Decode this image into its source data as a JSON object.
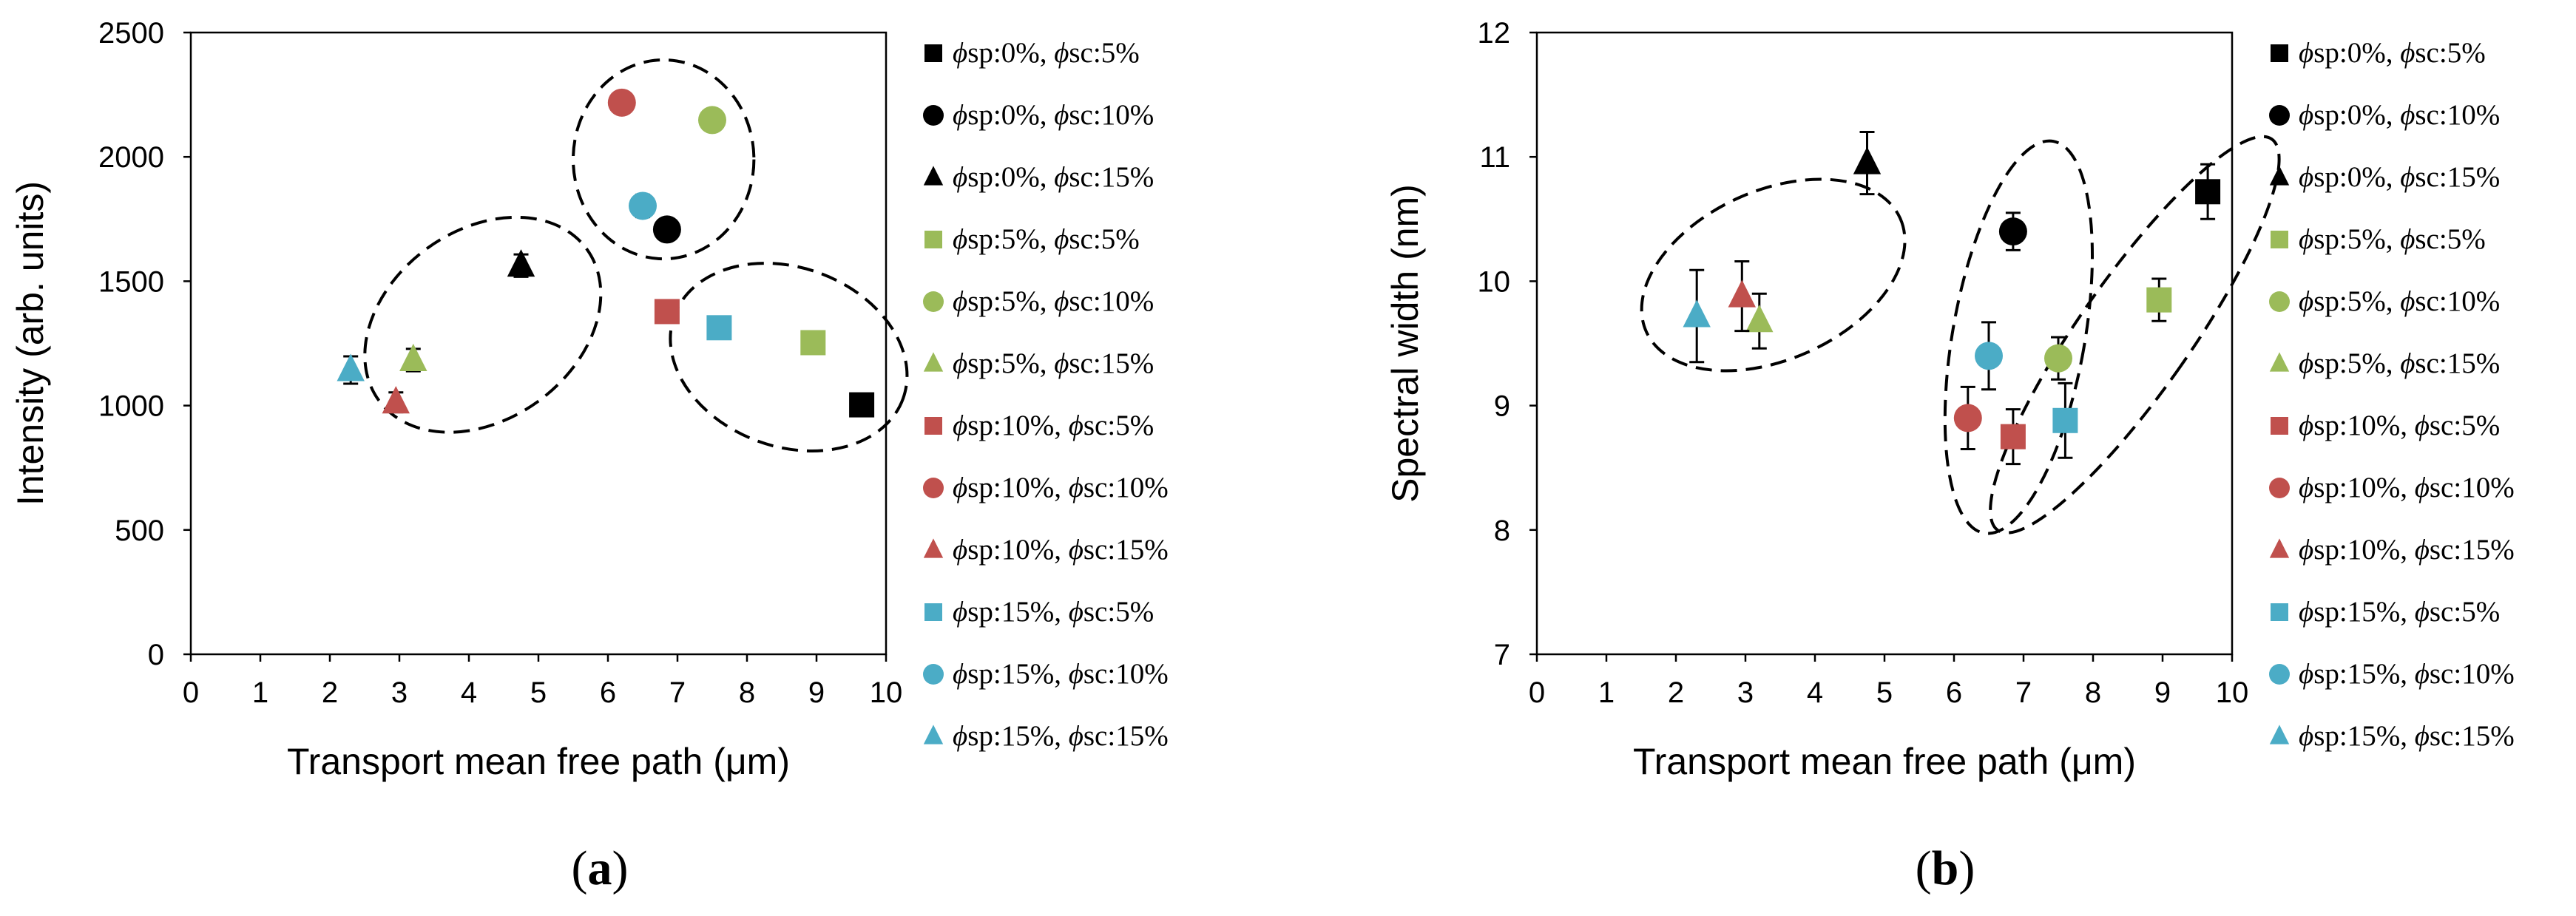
{
  "colors": {
    "black": "#000000",
    "green": "#9bbb59",
    "red": "#c0504d",
    "blue": "#4bacc6"
  },
  "chart_data": [
    {
      "type": "scatter",
      "panel_label": "a",
      "title": "",
      "xlabel": "Transport mean free path (μm)",
      "ylabel": "Intensity (arb. units)",
      "xlim": [
        0,
        10
      ],
      "ylim": [
        0,
        2500
      ],
      "xticks": [
        0,
        1,
        2,
        3,
        4,
        5,
        6,
        7,
        8,
        9,
        10
      ],
      "yticks": [
        0,
        500,
        1000,
        1500,
        2000,
        2500
      ],
      "legend_position": "right",
      "series": [
        {
          "name": "ϕsp:0%, ϕsc:5%",
          "phi_sp": "0%",
          "phi_sc": "5%",
          "color": "#000000",
          "marker": "square",
          "x": 9.65,
          "y": 1003,
          "err": 0
        },
        {
          "name": "ϕsp:0%, ϕsc:10%",
          "phi_sp": "0%",
          "phi_sc": "10%",
          "color": "#000000",
          "marker": "circle",
          "x": 6.85,
          "y": 1708,
          "err": 0
        },
        {
          "name": "ϕsp:0%, ϕsc:15%",
          "phi_sp": "0%",
          "phi_sc": "15%",
          "color": "#000000",
          "marker": "triangle",
          "x": 4.75,
          "y": 1563,
          "err": 45
        },
        {
          "name": "ϕsp:5%, ϕsc:5%",
          "phi_sp": "5%",
          "phi_sc": "5%",
          "color": "#9bbb59",
          "marker": "square",
          "x": 8.95,
          "y": 1253,
          "err": 0
        },
        {
          "name": "ϕsp:5%, ϕsc:10%",
          "phi_sp": "5%",
          "phi_sc": "10%",
          "color": "#9bbb59",
          "marker": "circle",
          "x": 7.5,
          "y": 2148,
          "err": 30
        },
        {
          "name": "ϕsp:5%, ϕsc:15%",
          "phi_sp": "5%",
          "phi_sc": "15%",
          "color": "#9bbb59",
          "marker": "triangle",
          "x": 3.2,
          "y": 1183,
          "err": 45
        },
        {
          "name": "ϕsp:10%, ϕsc:5%",
          "phi_sp": "10%",
          "phi_sc": "5%",
          "color": "#c0504d",
          "marker": "square",
          "x": 6.85,
          "y": 1378,
          "err": 0
        },
        {
          "name": "ϕsp:10%, ϕsc:10%",
          "phi_sp": "10%",
          "phi_sc": "10%",
          "color": "#c0504d",
          "marker": "circle",
          "x": 6.2,
          "y": 2218,
          "err": 35
        },
        {
          "name": "ϕsp:10%, ϕsc:15%",
          "phi_sp": "10%",
          "phi_sc": "15%",
          "color": "#c0504d",
          "marker": "triangle",
          "x": 2.95,
          "y": 1013,
          "err": 40
        },
        {
          "name": "ϕsp:15%, ϕsc:5%",
          "phi_sp": "15%",
          "phi_sc": "5%",
          "color": "#4bacc6",
          "marker": "square",
          "x": 7.6,
          "y": 1313,
          "err": 0
        },
        {
          "name": "ϕsp:15%, ϕsc:10%",
          "phi_sp": "15%",
          "phi_sc": "10%",
          "color": "#4bacc6",
          "marker": "circle",
          "x": 6.5,
          "y": 1803,
          "err": 45
        },
        {
          "name": "ϕsp:15%, ϕsc:15%",
          "phi_sp": "15%",
          "phi_sc": "15%",
          "color": "#4bacc6",
          "marker": "triangle",
          "x": 2.3,
          "y": 1143,
          "err": 55
        }
      ],
      "annotations": [
        {
          "shape": "dashed-ellipse",
          "cx": 4.2,
          "cy": 1325,
          "rx": 1.85,
          "ry": 380,
          "rotate_deg": -36
        },
        {
          "shape": "dashed-ellipse",
          "cx": 6.8,
          "cy": 1990,
          "rx": 1.3,
          "ry": 400,
          "rotate_deg": 0
        },
        {
          "shape": "dashed-ellipse",
          "cx": 8.6,
          "cy": 1195,
          "rx": 1.75,
          "ry": 360,
          "rotate_deg": 20
        }
      ]
    },
    {
      "type": "scatter",
      "panel_label": "b",
      "title": "",
      "xlabel": "Transport mean free path (μm)",
      "ylabel": "Spectral width (nm)",
      "xlim": [
        0,
        10
      ],
      "ylim": [
        7,
        12
      ],
      "xticks": [
        0,
        1,
        2,
        3,
        4,
        5,
        6,
        7,
        8,
        9,
        10
      ],
      "yticks": [
        7,
        8,
        9,
        10,
        11,
        12
      ],
      "legend_position": "right",
      "series": [
        {
          "name": "ϕsp:0%, ϕsc:5%",
          "phi_sp": "0%",
          "phi_sc": "5%",
          "color": "#000000",
          "marker": "square",
          "x": 9.65,
          "y": 10.72,
          "err": 0.22
        },
        {
          "name": "ϕsp:0%, ϕsc:10%",
          "phi_sp": "0%",
          "phi_sc": "10%",
          "color": "#000000",
          "marker": "circle",
          "x": 6.85,
          "y": 10.4,
          "err": 0.15
        },
        {
          "name": "ϕsp:0%, ϕsc:15%",
          "phi_sp": "0%",
          "phi_sc": "15%",
          "color": "#000000",
          "marker": "triangle",
          "x": 4.75,
          "y": 10.95,
          "err": 0.25
        },
        {
          "name": "ϕsp:5%, ϕsc:5%",
          "phi_sp": "5%",
          "phi_sc": "5%",
          "color": "#9bbb59",
          "marker": "square",
          "x": 8.95,
          "y": 9.85,
          "err": 0.17
        },
        {
          "name": "ϕsp:5%, ϕsc:10%",
          "phi_sp": "5%",
          "phi_sc": "10%",
          "color": "#9bbb59",
          "marker": "circle",
          "x": 7.5,
          "y": 9.38,
          "err": 0.17
        },
        {
          "name": "ϕsp:5%, ϕsc:15%",
          "phi_sp": "5%",
          "phi_sc": "15%",
          "color": "#9bbb59",
          "marker": "triangle",
          "x": 3.2,
          "y": 9.68,
          "err": 0.22
        },
        {
          "name": "ϕsp:10%, ϕsc:5%",
          "phi_sp": "10%",
          "phi_sc": "5%",
          "color": "#c0504d",
          "marker": "square",
          "x": 6.85,
          "y": 8.75,
          "err": 0.22
        },
        {
          "name": "ϕsp:10%, ϕsc:10%",
          "phi_sp": "10%",
          "phi_sc": "10%",
          "color": "#c0504d",
          "marker": "circle",
          "x": 6.2,
          "y": 8.9,
          "err": 0.25
        },
        {
          "name": "ϕsp:10%, ϕsc:15%",
          "phi_sp": "10%",
          "phi_sc": "15%",
          "color": "#c0504d",
          "marker": "triangle",
          "x": 2.95,
          "y": 9.88,
          "err": 0.28
        },
        {
          "name": "ϕsp:15%, ϕsc:5%",
          "phi_sp": "15%",
          "phi_sc": "5%",
          "color": "#4bacc6",
          "marker": "square",
          "x": 7.6,
          "y": 8.88,
          "err": 0.3
        },
        {
          "name": "ϕsp:15%, ϕsc:10%",
          "phi_sp": "15%",
          "phi_sc": "10%",
          "color": "#4bacc6",
          "marker": "circle",
          "x": 6.5,
          "y": 9.4,
          "err": 0.27
        },
        {
          "name": "ϕsp:15%, ϕsc:15%",
          "phi_sp": "15%",
          "phi_sc": "15%",
          "color": "#4bacc6",
          "marker": "triangle",
          "x": 2.3,
          "y": 9.72,
          "err": 0.37
        }
      ],
      "annotations": [
        {
          "shape": "dashed-ellipse",
          "cx": 3.4,
          "cy": 10.05,
          "rx": 2.0,
          "ry": 0.68,
          "rotate_deg": -24
        },
        {
          "shape": "dashed-ellipse",
          "cx": 6.93,
          "cy": 9.55,
          "rx": 0.95,
          "ry": 1.6,
          "rotate_deg": 10
        },
        {
          "shape": "dashed-ellipse",
          "cx": 8.6,
          "cy": 9.57,
          "rx": 0.8,
          "ry": 1.92,
          "rotate_deg": 35
        }
      ]
    }
  ]
}
